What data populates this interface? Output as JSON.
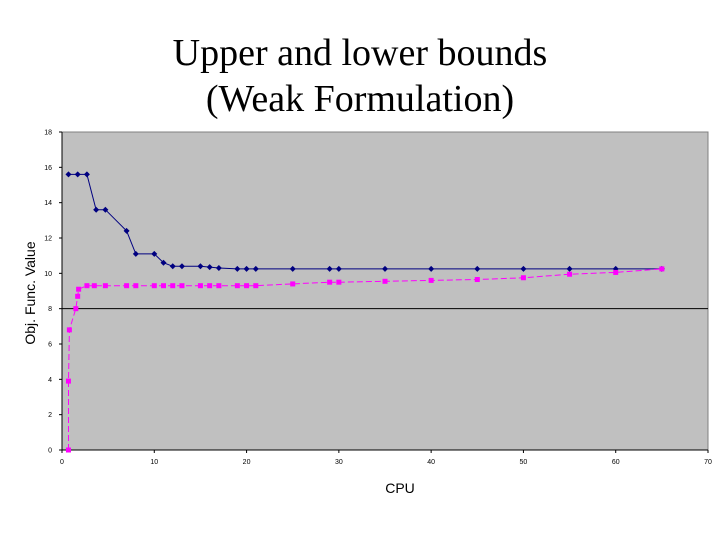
{
  "slide": {
    "title_line1": "Upper and lower bounds",
    "title_line2": "(Weak Formulation)"
  },
  "colors": {
    "plot_background": "#c0c0c0",
    "upper_series": "#000080",
    "lower_series": "#ff00ff"
  },
  "chart_data": {
    "type": "line",
    "title": "",
    "xlabel": "CPU",
    "ylabel": "Obj. Func. Value",
    "xlim": [
      0,
      70
    ],
    "ylim": [
      0,
      18
    ],
    "xticks": [
      0,
      10,
      20,
      30,
      40,
      50,
      60,
      70
    ],
    "yticks": [
      0,
      2,
      4,
      6,
      8,
      10,
      12,
      14,
      16,
      18
    ],
    "grid": "single horizontal line at y = 8",
    "legend": "none",
    "series": [
      {
        "marker": "diamond",
        "x": [
          0.7,
          1.7,
          2.7,
          3.7,
          4.7,
          7,
          8,
          10,
          11,
          12,
          13,
          15,
          16,
          17,
          19,
          20,
          21,
          25,
          29,
          30,
          35,
          40,
          45,
          50,
          55,
          60,
          65
        ],
        "y": [
          15.6,
          15.6,
          15.6,
          13.6,
          13.6,
          12.4,
          11.1,
          11.1,
          10.6,
          10.4,
          10.4,
          10.4,
          10.35,
          10.3,
          10.25,
          10.25,
          10.25,
          10.25,
          10.25,
          10.25,
          10.25,
          10.25,
          10.25,
          10.25,
          10.25,
          10.25,
          10.25
        ]
      },
      {
        "marker": "square",
        "x": [
          0.7,
          0.7,
          0.8,
          1.5,
          1.7,
          1.8,
          2.7,
          3.5,
          4.7,
          7,
          8,
          10,
          11,
          12,
          13,
          15,
          16,
          17,
          19,
          20,
          21,
          25,
          29,
          30,
          35,
          40,
          45,
          50,
          55,
          60,
          65
        ],
        "y": [
          0,
          3.9,
          6.8,
          8.0,
          8.7,
          9.1,
          9.3,
          9.3,
          9.3,
          9.3,
          9.3,
          9.3,
          9.3,
          9.3,
          9.3,
          9.3,
          9.3,
          9.3,
          9.3,
          9.3,
          9.3,
          9.4,
          9.5,
          9.5,
          9.55,
          9.6,
          9.65,
          9.75,
          9.95,
          10.05,
          10.25
        ]
      }
    ]
  }
}
